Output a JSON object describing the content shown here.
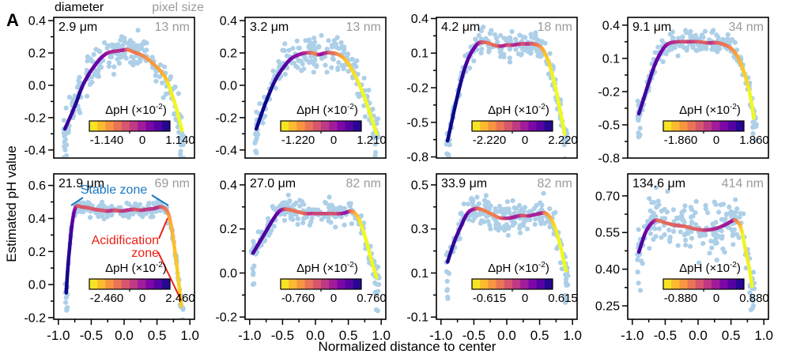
{
  "figure_label": "A",
  "header": {
    "left": "diameter",
    "right": "pixel size"
  },
  "axes": {
    "x_label": "Normalized distance to center",
    "y_label": "Estimated pH value"
  },
  "colorbar_label": {
    "pre": "ΔpH (×10",
    "sup": "-2",
    "suf": ")"
  },
  "colors": {
    "scatter": "#a9cde7",
    "annotation_stable": "#1a78c2",
    "annotation_acid": "#ed2015",
    "pixel_size_text": "#9b9b9b",
    "frame": "#000000",
    "colormap": [
      "#f0f921",
      "#fcce25",
      "#fca636",
      "#f2844b",
      "#e16462",
      "#cc4778",
      "#b12a90",
      "#8f0da4",
      "#6a00a8",
      "#41049d",
      "#0d0887"
    ]
  },
  "chart_data": [
    {
      "type": "scatter+line",
      "diameter": "2.9 μm",
      "pixel_size": "13 nm",
      "xlim": [
        -1.07,
        1.07
      ],
      "ylim": [
        -0.45,
        0.42
      ],
      "yticks": [
        "0.4",
        "0.2",
        "0.0",
        "-0.2",
        "-0.4"
      ],
      "xticks": [
        "-1.0",
        "-0.5",
        "0.0",
        "0.5",
        "1.0"
      ],
      "colorbar": {
        "min": "-1.140",
        "zero": "0",
        "max": "1.140"
      },
      "scatter_sd": 0.055,
      "curve": [
        [
          -0.9,
          -0.27
        ],
        [
          -0.75,
          -0.13
        ],
        [
          -0.65,
          -0.02
        ],
        [
          -0.55,
          0.06
        ],
        [
          -0.45,
          0.12
        ],
        [
          -0.35,
          0.17
        ],
        [
          -0.25,
          0.2
        ],
        [
          -0.15,
          0.21
        ],
        [
          -0.05,
          0.215
        ],
        [
          0.05,
          0.22
        ],
        [
          0.15,
          0.205
        ],
        [
          0.25,
          0.19
        ],
        [
          0.35,
          0.165
        ],
        [
          0.45,
          0.13
        ],
        [
          0.55,
          0.09
        ],
        [
          0.65,
          0.03
        ],
        [
          0.72,
          -0.05
        ],
        [
          0.8,
          -0.15
        ],
        [
          0.88,
          -0.28
        ]
      ]
    },
    {
      "type": "scatter+line",
      "diameter": "3.2 μm",
      "pixel_size": "13 nm",
      "xlim": [
        -1.07,
        1.07
      ],
      "ylim": [
        -0.45,
        0.42
      ],
      "yticks": [
        "0.4",
        "0.2",
        "0.0",
        "-0.2",
        "-0.4"
      ],
      "xticks": [
        "-1.0",
        "-0.5",
        "0.0",
        "0.5",
        "1.0"
      ],
      "colorbar": {
        "min": "-1.220",
        "zero": "0",
        "max": "1.210"
      },
      "scatter_sd": 0.06,
      "curve": [
        [
          -0.9,
          -0.27
        ],
        [
          -0.75,
          -0.1
        ],
        [
          -0.6,
          0.04
        ],
        [
          -0.45,
          0.13
        ],
        [
          -0.35,
          0.17
        ],
        [
          -0.25,
          0.19
        ],
        [
          -0.15,
          0.2
        ],
        [
          -0.05,
          0.2
        ],
        [
          0.05,
          0.19
        ],
        [
          0.15,
          0.2
        ],
        [
          0.25,
          0.2
        ],
        [
          0.35,
          0.19
        ],
        [
          0.45,
          0.16
        ],
        [
          0.55,
          0.1
        ],
        [
          0.65,
          0.02
        ],
        [
          0.75,
          -0.08
        ],
        [
          0.85,
          -0.2
        ],
        [
          0.93,
          -0.3
        ]
      ]
    },
    {
      "type": "scatter+line",
      "diameter": "4.2 μm",
      "pixel_size": "18 nm",
      "xlim": [
        -1.07,
        1.07
      ],
      "ylim": [
        -0.81,
        0.41
      ],
      "yticks": [
        "0.4",
        "0.1",
        "-0.2",
        "-0.5",
        "-0.8"
      ],
      "xticks": [
        "-1.0",
        "-0.5",
        "0.0",
        "0.5",
        "1.0"
      ],
      "colorbar": {
        "min": "-2.220",
        "zero": "0",
        "max": "2.220"
      },
      "scatter_sd": 0.06,
      "curve": [
        [
          -0.9,
          -0.66
        ],
        [
          -0.82,
          -0.45
        ],
        [
          -0.74,
          -0.25
        ],
        [
          -0.66,
          -0.07
        ],
        [
          -0.58,
          0.06
        ],
        [
          -0.5,
          0.14
        ],
        [
          -0.42,
          0.19
        ],
        [
          -0.3,
          0.19
        ],
        [
          -0.2,
          0.17
        ],
        [
          -0.1,
          0.16
        ],
        [
          0,
          0.17
        ],
        [
          0.1,
          0.17
        ],
        [
          0.2,
          0.18
        ],
        [
          0.3,
          0.18
        ],
        [
          0.4,
          0.18
        ],
        [
          0.5,
          0.16
        ],
        [
          0.58,
          0.1
        ],
        [
          0.66,
          -0.02
        ],
        [
          0.74,
          -0.2
        ],
        [
          0.82,
          -0.42
        ],
        [
          0.88,
          -0.6
        ]
      ]
    },
    {
      "type": "scatter+line",
      "diameter": "9.1 μm",
      "pixel_size": "34 nm",
      "xlim": [
        -1.07,
        1.07
      ],
      "ylim": [
        -0.8,
        0.47
      ],
      "yticks": [
        "0.4",
        "0.1",
        "-0.2",
        "-0.5",
        "-0.8"
      ],
      "xticks": [
        "-1.0",
        "-0.5",
        "0.0",
        "0.5",
        "1.0"
      ],
      "colorbar": {
        "min": "-1.860",
        "zero": "0",
        "max": "1.860"
      },
      "scatter_sd": 0.05,
      "curve": [
        [
          -0.9,
          -0.4
        ],
        [
          -0.82,
          -0.25
        ],
        [
          -0.74,
          -0.1
        ],
        [
          -0.66,
          0.04
        ],
        [
          -0.58,
          0.14
        ],
        [
          -0.5,
          0.21
        ],
        [
          -0.42,
          0.24
        ],
        [
          -0.3,
          0.25
        ],
        [
          -0.15,
          0.25
        ],
        [
          0,
          0.25
        ],
        [
          0.15,
          0.24
        ],
        [
          0.3,
          0.24
        ],
        [
          0.45,
          0.21
        ],
        [
          0.55,
          0.16
        ],
        [
          0.63,
          0.08
        ],
        [
          0.7,
          -0.03
        ],
        [
          0.78,
          -0.2
        ],
        [
          0.85,
          -0.44
        ]
      ]
    },
    {
      "type": "scatter+line",
      "diameter": "21.9 μm",
      "pixel_size": "69 nm",
      "xlim": [
        -1.07,
        1.07
      ],
      "ylim": [
        -0.21,
        0.67
      ],
      "yticks": [
        "0.6",
        "0.4",
        "0.2",
        "0.0",
        "-0.2"
      ],
      "xticks": [
        "-1.0",
        "-0.5",
        "0.0",
        "0.5",
        "1.0"
      ],
      "colorbar": {
        "min": "-2.460",
        "zero": "0",
        "max": "2.460"
      },
      "scatter_sd": 0.022,
      "annotations": {
        "stable": "Stable zone",
        "acid1": "Acidification",
        "acid2": "zone"
      },
      "curve": [
        [
          -0.88,
          -0.05
        ],
        [
          -0.86,
          0.08
        ],
        [
          -0.83,
          0.22
        ],
        [
          -0.8,
          0.34
        ],
        [
          -0.76,
          0.44
        ],
        [
          -0.72,
          0.475
        ],
        [
          -0.65,
          0.47
        ],
        [
          -0.55,
          0.465
        ],
        [
          -0.45,
          0.455
        ],
        [
          -0.35,
          0.45
        ],
        [
          -0.25,
          0.445
        ],
        [
          -0.15,
          0.45
        ],
        [
          -0.05,
          0.445
        ],
        [
          0.05,
          0.45
        ],
        [
          0.15,
          0.455
        ],
        [
          0.25,
          0.45
        ],
        [
          0.35,
          0.455
        ],
        [
          0.45,
          0.46
        ],
        [
          0.55,
          0.47
        ],
        [
          0.62,
          0.46
        ],
        [
          0.68,
          0.42
        ],
        [
          0.73,
          0.32
        ],
        [
          0.78,
          0.18
        ],
        [
          0.82,
          0.05
        ],
        [
          0.85,
          -0.06
        ],
        [
          0.87,
          -0.13
        ]
      ]
    },
    {
      "type": "scatter+line",
      "diameter": "27.0 μm",
      "pixel_size": "82 nm",
      "xlim": [
        -1.07,
        1.07
      ],
      "ylim": [
        -0.21,
        0.45
      ],
      "yticks": [
        "0.4",
        "0.2",
        "0.0",
        "-0.2"
      ],
      "xticks": [
        "-1.0",
        "-0.5",
        "0.0",
        "0.5",
        "1.0"
      ],
      "colorbar": {
        "min": "-0.760",
        "zero": "0",
        "max": "0.760"
      },
      "scatter_sd": 0.028,
      "curve": [
        [
          -0.95,
          0.09
        ],
        [
          -0.85,
          0.14
        ],
        [
          -0.75,
          0.19
        ],
        [
          -0.65,
          0.24
        ],
        [
          -0.55,
          0.28
        ],
        [
          -0.45,
          0.29
        ],
        [
          -0.3,
          0.28
        ],
        [
          -0.15,
          0.27
        ],
        [
          0,
          0.27
        ],
        [
          0.2,
          0.27
        ],
        [
          0.4,
          0.27
        ],
        [
          0.55,
          0.28
        ],
        [
          0.65,
          0.25
        ],
        [
          0.75,
          0.17
        ],
        [
          0.85,
          0.06
        ],
        [
          0.93,
          -0.02
        ]
      ]
    },
    {
      "type": "scatter+line",
      "diameter": "33.9 μm",
      "pixel_size": "82 nm",
      "xlim": [
        -1.07,
        1.07
      ],
      "ylim": [
        -0.11,
        0.55
      ],
      "yticks": [
        "0.5",
        "0.3",
        "0.1",
        "-0.1"
      ],
      "xticks": [
        "-1.0",
        "-0.5",
        "0.0",
        "0.5",
        "1.0"
      ],
      "colorbar": {
        "min": "-0.615",
        "zero": "0",
        "max": "0.615"
      },
      "scatter_sd": 0.035,
      "curve": [
        [
          -0.9,
          0.15
        ],
        [
          -0.8,
          0.24
        ],
        [
          -0.7,
          0.31
        ],
        [
          -0.6,
          0.37
        ],
        [
          -0.5,
          0.39
        ],
        [
          -0.4,
          0.39
        ],
        [
          -0.25,
          0.37
        ],
        [
          -0.1,
          0.35
        ],
        [
          0.05,
          0.35
        ],
        [
          0.2,
          0.36
        ],
        [
          0.35,
          0.36
        ],
        [
          0.5,
          0.37
        ],
        [
          0.6,
          0.37
        ],
        [
          0.7,
          0.33
        ],
        [
          0.8,
          0.24
        ],
        [
          0.9,
          0.11
        ]
      ]
    },
    {
      "type": "scatter+line",
      "diameter": "134.6 μm",
      "pixel_size": "414 nm",
      "xlim": [
        -1.07,
        1.07
      ],
      "ylim": [
        0.195,
        0.79
      ],
      "yticks": [
        "0.70",
        "0.55",
        "0.40",
        "0.25"
      ],
      "xticks": [
        "-1.0",
        "-0.5",
        "0.0",
        "0.5",
        "1.0"
      ],
      "colorbar": {
        "min": "-0.880",
        "zero": "0",
        "max": "0.880"
      },
      "scatter_sd": 0.05,
      "curve": [
        [
          -0.9,
          0.47
        ],
        [
          -0.8,
          0.55
        ],
        [
          -0.7,
          0.59
        ],
        [
          -0.62,
          0.6
        ],
        [
          -0.5,
          0.59
        ],
        [
          -0.35,
          0.58
        ],
        [
          -0.2,
          0.575
        ],
        [
          -0.05,
          0.565
        ],
        [
          0.1,
          0.56
        ],
        [
          0.25,
          0.565
        ],
        [
          0.4,
          0.58
        ],
        [
          0.5,
          0.595
        ],
        [
          0.57,
          0.6
        ],
        [
          0.65,
          0.57
        ],
        [
          0.72,
          0.48
        ],
        [
          0.78,
          0.4
        ],
        [
          0.82,
          0.33
        ]
      ]
    }
  ]
}
